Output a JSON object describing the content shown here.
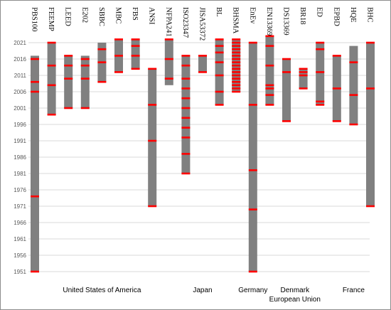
{
  "chart_data": {
    "type": "range-bar",
    "title": "",
    "xlabel": "",
    "ylabel": "",
    "ylim": [
      1951,
      2022
    ],
    "yticks": [
      1951,
      1956,
      1961,
      1966,
      1971,
      1976,
      1981,
      1986,
      1991,
      1996,
      2001,
      2006,
      2011,
      2016,
      2021
    ],
    "grid": true,
    "colors": {
      "bar": "#808080",
      "marker": "#ff0000"
    },
    "standards": [
      {
        "name": "PBS100",
        "start": 1951,
        "end": 2017,
        "revisions": [
          1951,
          1974,
          2006,
          2009,
          2016
        ]
      },
      {
        "name": "FEEMP",
        "start": 1999,
        "end": 2021,
        "revisions": [
          1999,
          2008,
          2014,
          2021
        ]
      },
      {
        "name": "LEED",
        "start": 2001,
        "end": 2017,
        "revisions": [
          2001,
          2010,
          2014,
          2017
        ]
      },
      {
        "name": "E202",
        "start": 2001,
        "end": 2017,
        "revisions": [
          2001,
          2010,
          2014,
          2016
        ]
      },
      {
        "name": "SBBC",
        "start": 2009,
        "end": 2021,
        "revisions": [
          2009,
          2015,
          2019
        ]
      },
      {
        "name": "MBC",
        "start": 2012,
        "end": 2022,
        "revisions": [
          2012,
          2017,
          2022
        ]
      },
      {
        "name": "FBS",
        "start": 2013,
        "end": 2022,
        "revisions": [
          2013,
          2017,
          2020,
          2022
        ]
      },
      {
        "name": "ANSI",
        "start": 1971,
        "end": 2013,
        "revisions": [
          1971,
          1991,
          2002,
          2013
        ]
      },
      {
        "name": "NFPA241",
        "start": 2008,
        "end": 2022,
        "revisions": [
          2010,
          2016,
          2022
        ]
      },
      {
        "name": "ISO23347",
        "start": 1981,
        "end": 2017,
        "revisions": [
          1981,
          1987,
          1992,
          1995,
          1998,
          2001,
          2004,
          2007,
          2010,
          2014,
          2017
        ]
      },
      {
        "name": "JISA53372",
        "start": 2012,
        "end": 2017,
        "revisions": [
          2012,
          2017
        ]
      },
      {
        "name": "BL",
        "start": 2002,
        "end": 2022,
        "revisions": [
          2002,
          2006,
          2011,
          2015,
          2018,
          2020,
          2022
        ]
      },
      {
        "name": "BHSMA",
        "start": 2006,
        "end": 2022,
        "revisions": [
          2006,
          2007,
          2008,
          2009,
          2010,
          2011,
          2012,
          2013,
          2014,
          2015,
          2016,
          2017,
          2018,
          2019,
          2020,
          2021,
          2022
        ]
      },
      {
        "name": "EnEv",
        "start": 1951,
        "end": 2021,
        "revisions": [
          1951,
          1970,
          1982,
          2002,
          2021
        ]
      },
      {
        "name": "EN13369",
        "start": 2002,
        "end": 2023,
        "revisions": [
          2002,
          2005,
          2007,
          2008,
          2014,
          2020,
          2023
        ]
      },
      {
        "name": "DS13369",
        "start": 1997,
        "end": 2016,
        "revisions": [
          1997,
          2012,
          2016
        ]
      },
      {
        "name": "BR18",
        "start": 2007,
        "end": 2013,
        "revisions": [
          2007,
          2011,
          2012,
          2013
        ]
      },
      {
        "name": "ED",
        "start": 2002,
        "end": 2021,
        "revisions": [
          2002,
          2003,
          2012,
          2019,
          2021
        ]
      },
      {
        "name": "EPBD",
        "start": 1997,
        "end": 2017,
        "revisions": [
          1997,
          2007,
          2017
        ]
      },
      {
        "name": "HQE",
        "start": 1996,
        "end": 2020,
        "revisions": [
          1996,
          2005,
          2015
        ]
      },
      {
        "name": "BHC",
        "start": 1971,
        "end": 2021,
        "revisions": [
          1971,
          2007,
          2021
        ]
      }
    ],
    "groups": [
      {
        "label": "United States of America",
        "first": 0,
        "last": 8
      },
      {
        "label": "Japan",
        "first": 9,
        "last": 11
      },
      {
        "label": "Germany",
        "first": 13,
        "last": 13
      },
      {
        "label": "Denmark",
        "first": 15,
        "last": 16
      },
      {
        "label": "European Union",
        "first": 14,
        "last": 17
      },
      {
        "label": "France",
        "first": 18,
        "last": 20
      }
    ]
  }
}
